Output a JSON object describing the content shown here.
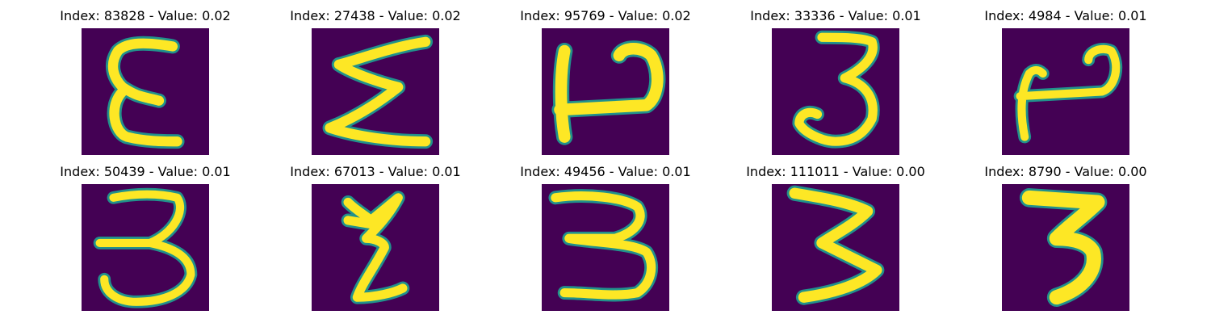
{
  "figure": {
    "background_color": "#ffffff",
    "image_background_color": "#440154",
    "stroke_color": "#fde725",
    "edge_color": "#21918c"
  },
  "panels": [
    {
      "title": "Index: 83828 - Value: 0.02",
      "glyph": "E"
    },
    {
      "title": "Index: 27438 - Value: 0.02",
      "glyph": "Σ"
    },
    {
      "title": "Index: 95769 - Value: 0.02",
      "glyph": "ਪ"
    },
    {
      "title": "Index: 33336 - Value: 0.01",
      "glyph": "3"
    },
    {
      "title": "Index: 4984 - Value: 0.01",
      "glyph": "ਪ"
    },
    {
      "title": "Index: 50439 - Value: 0.01",
      "glyph": "3"
    },
    {
      "title": "Index: 67013 - Value: 0.01",
      "glyph": "Ƹ"
    },
    {
      "title": "Index: 49456 - Value: 0.01",
      "glyph": "3"
    },
    {
      "title": "Index: 111011 - Value: 0.00",
      "glyph": "3"
    },
    {
      "title": "Index: 8790 - Value: 0.00",
      "glyph": "3"
    }
  ]
}
